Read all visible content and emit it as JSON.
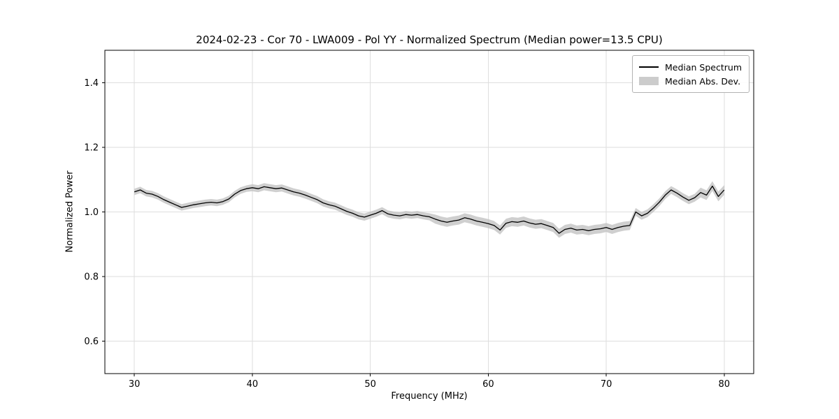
{
  "chart_data": {
    "type": "line",
    "title": "2024-02-23 - Cor 70 - LWA009 - Pol YY - Normalized Spectrum (Median power=13.5 CPU)",
    "xlabel": "Frequency (MHz)",
    "ylabel": "Normalized Power",
    "xlim": [
      27.5,
      82.5
    ],
    "ylim": [
      0.5,
      1.5
    ],
    "xticks": [
      30,
      40,
      50,
      60,
      70,
      80
    ],
    "yticks": [
      0.6,
      0.8,
      1.0,
      1.2,
      1.4
    ],
    "grid": true,
    "legend_position": "upper right",
    "legend": {
      "items": [
        {
          "label": "Median Spectrum",
          "type": "line",
          "color": "#000000"
        },
        {
          "label": "Median Abs. Dev.",
          "type": "patch",
          "color": "#cccccc"
        }
      ]
    },
    "colors": {
      "line": "#000000",
      "band": "#bfbfbf",
      "grid": "#dedede",
      "spine": "#000000"
    },
    "x": [
      30,
      30.5,
      31,
      31.5,
      32,
      32.5,
      33,
      33.5,
      34,
      34.5,
      35,
      35.5,
      36,
      36.5,
      37,
      37.5,
      38,
      38.5,
      39,
      39.5,
      40,
      40.5,
      41,
      41.5,
      42,
      42.5,
      43,
      43.5,
      44,
      44.5,
      45,
      45.5,
      46,
      46.5,
      47,
      47.5,
      48,
      48.5,
      49,
      49.5,
      50,
      50.5,
      51,
      51.5,
      52,
      52.5,
      53,
      53.5,
      54,
      54.5,
      55,
      55.5,
      56,
      56.5,
      57,
      57.5,
      58,
      58.5,
      59,
      59.5,
      60,
      60.5,
      61,
      61.5,
      62,
      62.5,
      63,
      63.5,
      64,
      64.5,
      65,
      65.5,
      66,
      66.5,
      67,
      67.5,
      68,
      68.5,
      69,
      69.5,
      70,
      70.5,
      71,
      71.5,
      72,
      72.5,
      73,
      73.5,
      74,
      74.5,
      75,
      75.5,
      76,
      76.5,
      77,
      77.5,
      78,
      78.5,
      79,
      79.5,
      80
    ],
    "series": [
      {
        "name": "Median Spectrum",
        "values": [
          1.062,
          1.068,
          1.058,
          1.055,
          1.048,
          1.038,
          1.03,
          1.022,
          1.014,
          1.018,
          1.022,
          1.025,
          1.028,
          1.03,
          1.028,
          1.032,
          1.04,
          1.055,
          1.066,
          1.072,
          1.075,
          1.072,
          1.078,
          1.075,
          1.072,
          1.074,
          1.068,
          1.062,
          1.058,
          1.052,
          1.045,
          1.038,
          1.028,
          1.022,
          1.018,
          1.01,
          1.002,
          0.996,
          0.988,
          0.984,
          0.99,
          0.996,
          1.004,
          0.994,
          0.99,
          0.988,
          0.992,
          0.99,
          0.992,
          0.988,
          0.985,
          0.978,
          0.972,
          0.968,
          0.972,
          0.975,
          0.982,
          0.978,
          0.972,
          0.968,
          0.964,
          0.958,
          0.944,
          0.965,
          0.97,
          0.968,
          0.972,
          0.966,
          0.962,
          0.964,
          0.958,
          0.952,
          0.934,
          0.946,
          0.95,
          0.944,
          0.946,
          0.942,
          0.946,
          0.948,
          0.952,
          0.946,
          0.952,
          0.956,
          0.958,
          1.0,
          0.988,
          0.996,
          1.012,
          1.03,
          1.052,
          1.068,
          1.058,
          1.046,
          1.036,
          1.044,
          1.06,
          1.052,
          1.08,
          1.048,
          1.068
        ]
      },
      {
        "name": "Median Abs. Dev.",
        "values": [
          0.01,
          0.01,
          0.01,
          0.01,
          0.01,
          0.01,
          0.01,
          0.01,
          0.01,
          0.01,
          0.01,
          0.01,
          0.01,
          0.01,
          0.01,
          0.01,
          0.01,
          0.01,
          0.01,
          0.01,
          0.011,
          0.011,
          0.011,
          0.011,
          0.011,
          0.011,
          0.011,
          0.011,
          0.011,
          0.011,
          0.011,
          0.011,
          0.011,
          0.011,
          0.011,
          0.011,
          0.011,
          0.011,
          0.011,
          0.011,
          0.011,
          0.011,
          0.011,
          0.011,
          0.011,
          0.011,
          0.011,
          0.011,
          0.011,
          0.011,
          0.011,
          0.014,
          0.014,
          0.014,
          0.014,
          0.014,
          0.014,
          0.014,
          0.014,
          0.014,
          0.014,
          0.014,
          0.014,
          0.014,
          0.014,
          0.014,
          0.014,
          0.014,
          0.014,
          0.014,
          0.014,
          0.014,
          0.014,
          0.014,
          0.014,
          0.014,
          0.014,
          0.014,
          0.014,
          0.014,
          0.014,
          0.014,
          0.014,
          0.014,
          0.014,
          0.012,
          0.012,
          0.012,
          0.012,
          0.012,
          0.012,
          0.012,
          0.012,
          0.012,
          0.012,
          0.012,
          0.015,
          0.015,
          0.015,
          0.015,
          0.015
        ]
      }
    ]
  }
}
